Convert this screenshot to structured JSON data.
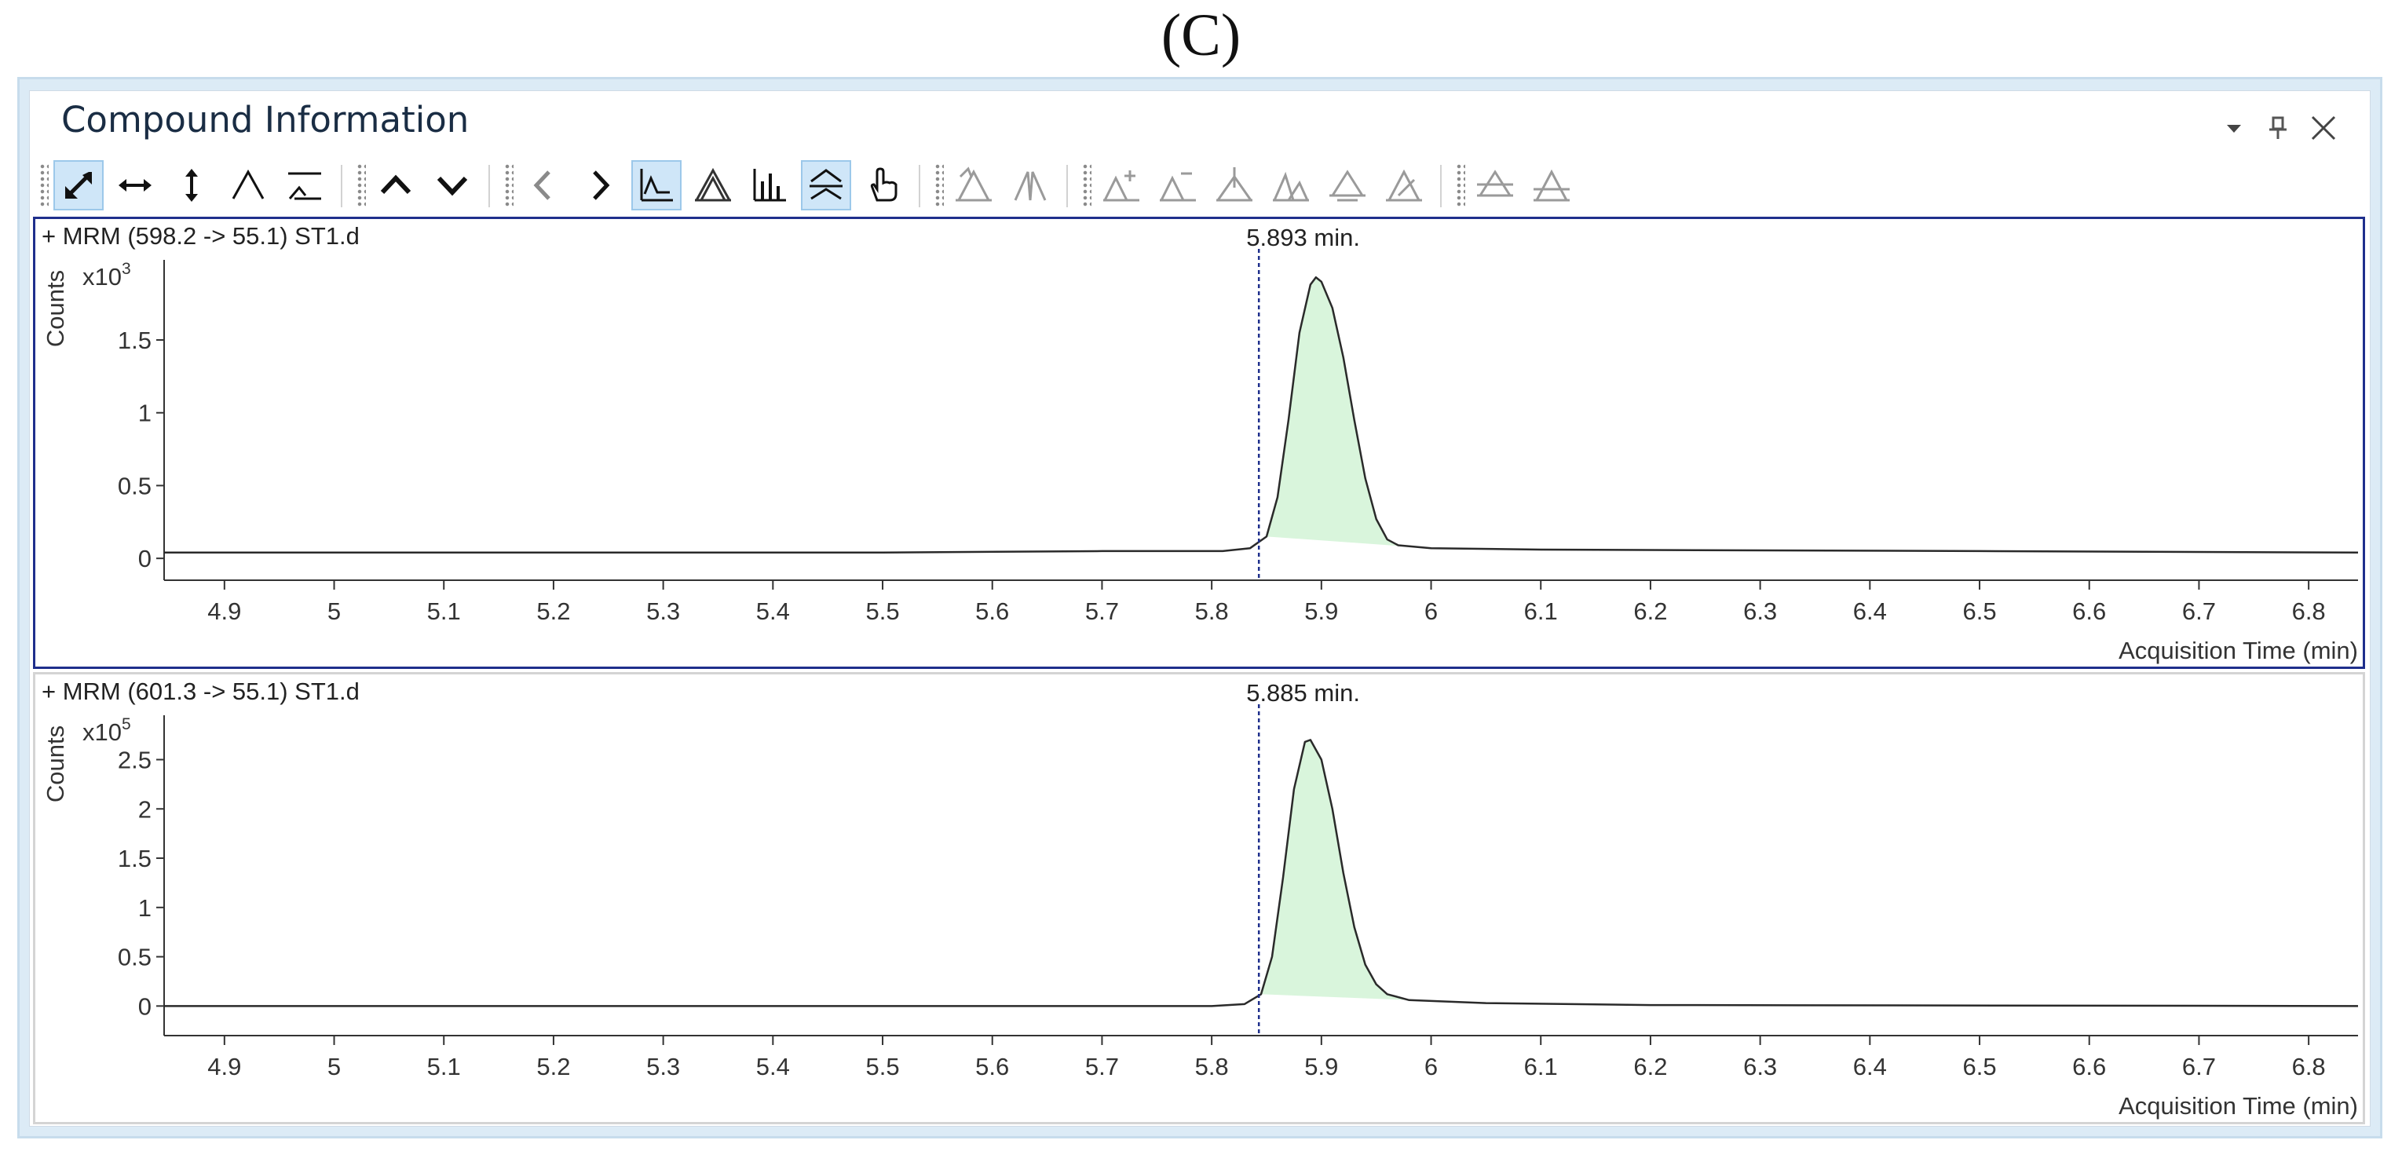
{
  "figure_label": "(C)",
  "window": {
    "title": "Compound Information",
    "controls": [
      "chevron-down-icon",
      "pin-icon",
      "close-icon"
    ]
  },
  "toolbar": {
    "groups": [
      [
        "autoscale-xy-icon",
        "autoscale-x-icon",
        "autoscale-y-icon",
        "peak-icon",
        "baseline-icon"
      ],
      [
        "chevron-up-icon",
        "chevron-down-icon"
      ],
      [
        "chevron-left-icon",
        "chevron-right-icon",
        "integrate-chromatogram-icon",
        "overlay-peaks-icon",
        "bar-spectrum-icon",
        "peak-boundary-icon",
        "hand-pointer-icon"
      ],
      [
        "manual-integration-icon",
        "split-peak-icon"
      ],
      [
        "add-peak-icon",
        "remove-peak-icon",
        "drop-baseline-icon",
        "tangent-skim-icon",
        "baseline-adjust-icon",
        "peak-edit-icon"
      ],
      [
        "zero-peak-icon",
        "delete-peak-icon"
      ]
    ],
    "active": [
      "autoscale-xy-icon",
      "integrate-chromatogram-icon",
      "peak-boundary-icon"
    ]
  },
  "colors": {
    "accent": "#1f2f8c",
    "peak_fill": "#d9f5dc",
    "trace": "#2a2a2a",
    "marker": "#1f2f8c"
  },
  "chart_data": [
    {
      "type": "line",
      "title": "+ MRM (598.2 -> 55.1) ST1.d",
      "ylabel": "Counts",
      "y_multiplier_label": "x10",
      "y_multiplier_exp": "3",
      "xlabel": "Acquisition Time (min)",
      "xlim": [
        4.845,
        6.845
      ],
      "ylim": [
        -0.15,
        2.05
      ],
      "x_ticks": [
        "4.9",
        "5",
        "5.1",
        "5.2",
        "5.3",
        "5.4",
        "5.5",
        "5.6",
        "5.7",
        "5.8",
        "5.9",
        "6",
        "6.1",
        "6.2",
        "6.3",
        "6.4",
        "6.5",
        "6.6",
        "6.7",
        "6.8"
      ],
      "y_ticks": [
        "0",
        "0.5",
        "1",
        "1.5"
      ],
      "y_tick_values": [
        0,
        0.5,
        1,
        1.5
      ],
      "peak_label": "5.893 min.",
      "peak_marker_x": 5.843,
      "points": [
        [
          4.845,
          0.04
        ],
        [
          5.2,
          0.04
        ],
        [
          5.5,
          0.04
        ],
        [
          5.7,
          0.05
        ],
        [
          5.81,
          0.05
        ],
        [
          5.835,
          0.07
        ],
        [
          5.85,
          0.15
        ],
        [
          5.86,
          0.42
        ],
        [
          5.87,
          0.95
        ],
        [
          5.88,
          1.55
        ],
        [
          5.89,
          1.88
        ],
        [
          5.895,
          1.93
        ],
        [
          5.9,
          1.9
        ],
        [
          5.91,
          1.72
        ],
        [
          5.92,
          1.38
        ],
        [
          5.93,
          0.95
        ],
        [
          5.94,
          0.55
        ],
        [
          5.95,
          0.27
        ],
        [
          5.96,
          0.13
        ],
        [
          5.97,
          0.09
        ],
        [
          6.0,
          0.07
        ],
        [
          6.1,
          0.06
        ],
        [
          6.5,
          0.05
        ],
        [
          6.845,
          0.04
        ]
      ]
    },
    {
      "type": "line",
      "title": "+ MRM (601.3 -> 55.1) ST1.d",
      "ylabel": "Counts",
      "y_multiplier_label": "x10",
      "y_multiplier_exp": "5",
      "xlabel": "Acquisition Time (min)",
      "xlim": [
        4.845,
        6.845
      ],
      "ylim": [
        -0.3,
        2.95
      ],
      "x_ticks": [
        "4.9",
        "5",
        "5.1",
        "5.2",
        "5.3",
        "5.4",
        "5.5",
        "5.6",
        "5.7",
        "5.8",
        "5.9",
        "6",
        "6.1",
        "6.2",
        "6.3",
        "6.4",
        "6.5",
        "6.6",
        "6.7",
        "6.8"
      ],
      "y_ticks": [
        "0",
        "0.5",
        "1",
        "1.5",
        "2",
        "2.5"
      ],
      "y_tick_values": [
        0,
        0.5,
        1,
        1.5,
        2,
        2.5
      ],
      "peak_label": "5.885 min.",
      "peak_marker_x": 5.843,
      "points": [
        [
          4.845,
          0.0
        ],
        [
          5.5,
          0.0
        ],
        [
          5.8,
          0.0
        ],
        [
          5.83,
          0.02
        ],
        [
          5.845,
          0.12
        ],
        [
          5.855,
          0.5
        ],
        [
          5.865,
          1.3
        ],
        [
          5.875,
          2.2
        ],
        [
          5.885,
          2.68
        ],
        [
          5.89,
          2.7
        ],
        [
          5.9,
          2.5
        ],
        [
          5.91,
          2.0
        ],
        [
          5.92,
          1.35
        ],
        [
          5.93,
          0.8
        ],
        [
          5.94,
          0.42
        ],
        [
          5.95,
          0.22
        ],
        [
          5.96,
          0.12
        ],
        [
          5.98,
          0.06
        ],
        [
          6.05,
          0.03
        ],
        [
          6.2,
          0.01
        ],
        [
          6.845,
          0.0
        ]
      ]
    }
  ]
}
